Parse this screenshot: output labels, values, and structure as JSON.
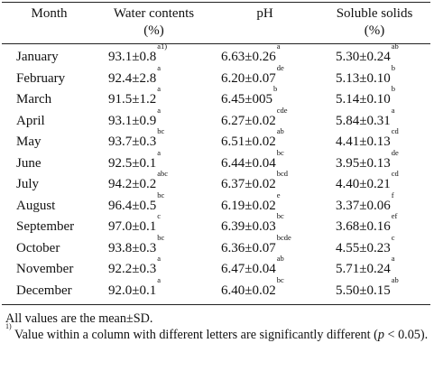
{
  "table": {
    "headers": {
      "month": "Month",
      "water_line1": "Water contents",
      "water_line2": "(%)",
      "ph": "pH",
      "ss_line1": "Soluble solids",
      "ss_line2": "(%)"
    },
    "rows": [
      {
        "month": "January",
        "water": "93.1±0.8",
        "water_sup": "a1)",
        "ph": "6.63±0.26",
        "ph_sup": "a",
        "ss": "5.30±0.24",
        "ss_sup": "ab"
      },
      {
        "month": "February",
        "water": "92.4±2.8",
        "water_sup": "a",
        "ph": "6.20±0.07",
        "ph_sup": "de",
        "ss": "5.13±0.10",
        "ss_sup": "b"
      },
      {
        "month": "March",
        "water": "91.5±1.2",
        "water_sup": "a",
        "ph": "6.45±005",
        "ph_sup": "b",
        "ss": "5.14±0.10",
        "ss_sup": "b"
      },
      {
        "month": "April",
        "water": "93.1±0.9",
        "water_sup": "a",
        "ph": "6.27±0.02",
        "ph_sup": "cde",
        "ss": "5.84±0.31",
        "ss_sup": "a"
      },
      {
        "month": "May",
        "water": "93.7±0.3",
        "water_sup": "bc",
        "ph": "6.51±0.02",
        "ph_sup": "ab",
        "ss": "4.41±0.13",
        "ss_sup": "cd"
      },
      {
        "month": "June",
        "water": "92.5±0.1",
        "water_sup": "a",
        "ph": "6.44±0.04",
        "ph_sup": "bc",
        "ss": "3.95±0.13",
        "ss_sup": "de"
      },
      {
        "month": "July",
        "water": "94.2±0.2",
        "water_sup": "abc",
        "ph": "6.37±0.02",
        "ph_sup": "bcd",
        "ss": "4.40±0.21",
        "ss_sup": "cd"
      },
      {
        "month": "August",
        "water": "96.4±0.5",
        "water_sup": "bc",
        "ph": "6.19±0.02",
        "ph_sup": "e",
        "ss": "3.37±0.06",
        "ss_sup": "f"
      },
      {
        "month": "September",
        "water": "97.0±0.1",
        "water_sup": "c",
        "ph": "6.39±0.03",
        "ph_sup": "bc",
        "ss": "3.68±0.16",
        "ss_sup": "ef"
      },
      {
        "month": "October",
        "water": "93.8±0.3",
        "water_sup": "bc",
        "ph": "6.36±0.07",
        "ph_sup": "bcde",
        "ss": "4.55±0.23",
        "ss_sup": "c"
      },
      {
        "month": "November",
        "water": "92.2±0.3",
        "water_sup": "a",
        "ph": "6.47±0.04",
        "ph_sup": "ab",
        "ss": "5.71±0.24",
        "ss_sup": "a"
      },
      {
        "month": "December",
        "water": "92.0±0.1",
        "water_sup": "a",
        "ph": "6.40±0.02",
        "ph_sup": "bc",
        "ss": "5.50±0.15",
        "ss_sup": "ab"
      }
    ]
  },
  "footnotes": {
    "note1": "All values are the mean±SD.",
    "note2_marker": "1)",
    "note2_text_a": " Value within a column with different letters are significantly different (",
    "note2_p": "p",
    "note2_text_b": " < 0.05)."
  }
}
